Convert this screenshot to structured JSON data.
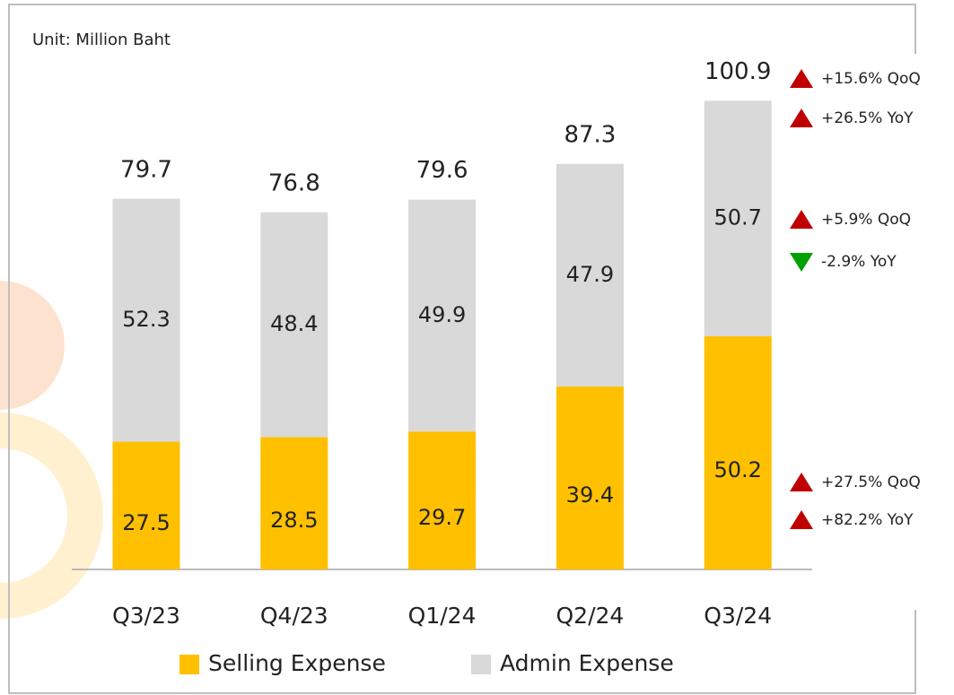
{
  "chart_data": {
    "type": "stacked-bar",
    "unit_label": "Unit: Million Baht",
    "categories": [
      "Q3/23",
      "Q4/23",
      "Q1/24",
      "Q2/24",
      "Q3/24"
    ],
    "series": [
      {
        "name": "Selling Expense",
        "color": "#ffc000",
        "values": [
          27.5,
          28.5,
          29.7,
          39.4,
          50.2
        ]
      },
      {
        "name": "Admin Expense",
        "color": "#d9d9d9",
        "values": [
          52.3,
          48.4,
          49.9,
          47.9,
          50.7
        ]
      }
    ],
    "totals": [
      79.7,
      76.8,
      79.6,
      87.3,
      100.9
    ],
    "annotations": [
      {
        "text": "+15.6% QoQ",
        "marker": "up",
        "color": "#c00000"
      },
      {
        "text": "+26.5% YoY",
        "marker": "up",
        "color": "#c00000"
      },
      {
        "text": "+5.9% QoQ",
        "marker": "up",
        "color": "#c00000"
      },
      {
        "text": "-2.9% YoY",
        "marker": "down",
        "color": "#00a000"
      },
      {
        "text": "+27.5% QoQ",
        "marker": "up",
        "color": "#c00000"
      },
      {
        "text": "+82.2% YoY",
        "marker": "up",
        "color": "#c00000"
      }
    ]
  }
}
